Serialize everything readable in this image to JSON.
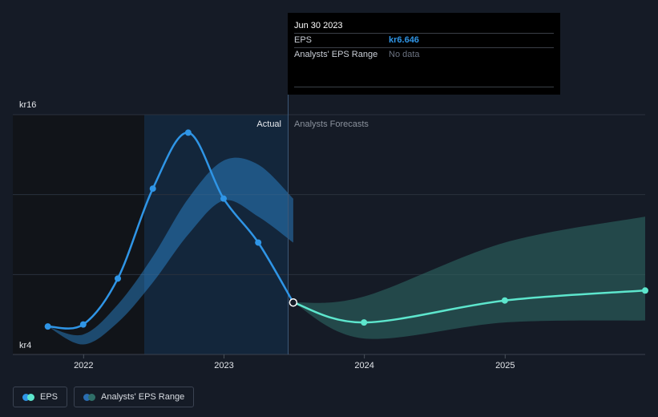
{
  "chart_data": {
    "type": "line",
    "x_ticks": [
      "2022",
      "2023",
      "2024",
      "2025"
    ],
    "y_ticks": [
      "kr16",
      "kr4"
    ],
    "ylim": [
      4,
      16
    ],
    "xlim": [
      "2021-07-01",
      "2025-12-31"
    ],
    "divider_labels": {
      "actual": "Actual",
      "forecast": "Analysts Forecasts"
    },
    "series": [
      {
        "name": "EPS",
        "color": "#2f95e6",
        "points": [
          {
            "x": "2021-09-30",
            "y": 5.4
          },
          {
            "x": "2021-12-31",
            "y": 5.5
          },
          {
            "x": "2022-03-31",
            "y": 7.8
          },
          {
            "x": "2022-06-30",
            "y": 12.3
          },
          {
            "x": "2022-09-30",
            "y": 15.1
          },
          {
            "x": "2022-12-31",
            "y": 11.8
          },
          {
            "x": "2023-03-31",
            "y": 9.6
          },
          {
            "x": "2023-06-30",
            "y": 6.6
          }
        ]
      },
      {
        "name": "EPS Forecast",
        "color": "#5de6cd",
        "points": [
          {
            "x": "2023-06-30",
            "y": 6.6
          },
          {
            "x": "2023-12-31",
            "y": 5.6
          },
          {
            "x": "2024-12-31",
            "y": 6.7
          },
          {
            "x": "2025-12-31",
            "y": 7.2
          }
        ]
      }
    ],
    "actual_range_band": {
      "color": "#2f95e6",
      "points": [
        {
          "x": "2021-09-30",
          "lo": 5.4,
          "hi": 5.4
        },
        {
          "x": "2021-12-31",
          "lo": 4.5,
          "hi": 5.0
        },
        {
          "x": "2022-03-31",
          "lo": 5.6,
          "hi": 6.5
        },
        {
          "x": "2022-06-30",
          "lo": 7.6,
          "hi": 8.9
        },
        {
          "x": "2022-09-30",
          "lo": 10.0,
          "hi": 11.8
        },
        {
          "x": "2022-12-31",
          "lo": 11.7,
          "hi": 13.7
        },
        {
          "x": "2023-03-31",
          "lo": 10.9,
          "hi": 13.5
        },
        {
          "x": "2023-06-30",
          "lo": 9.6,
          "hi": 11.8
        }
      ]
    },
    "forecast_range_band": {
      "name": "Analysts' EPS Range",
      "color": "#2f6e68",
      "points": [
        {
          "x": "2023-06-30",
          "lo": 6.6,
          "hi": 6.6
        },
        {
          "x": "2023-12-31",
          "lo": 4.8,
          "hi": 6.9
        },
        {
          "x": "2024-12-31",
          "lo": 5.6,
          "hi": 9.6
        },
        {
          "x": "2025-12-31",
          "lo": 5.7,
          "hi": 10.9
        }
      ]
    }
  },
  "tooltip": {
    "date": "Jun 30 2023",
    "rows": [
      {
        "label": "EPS",
        "value": "kr6.646"
      },
      {
        "label": "Analysts' EPS Range",
        "value": "No data"
      }
    ]
  },
  "legend": [
    {
      "label": "EPS",
      "colors": [
        "#2f95e6",
        "#5de6cd"
      ]
    },
    {
      "label": "Analysts' EPS Range",
      "colors": [
        "#2a6cb0",
        "#2f6e68"
      ]
    }
  ]
}
